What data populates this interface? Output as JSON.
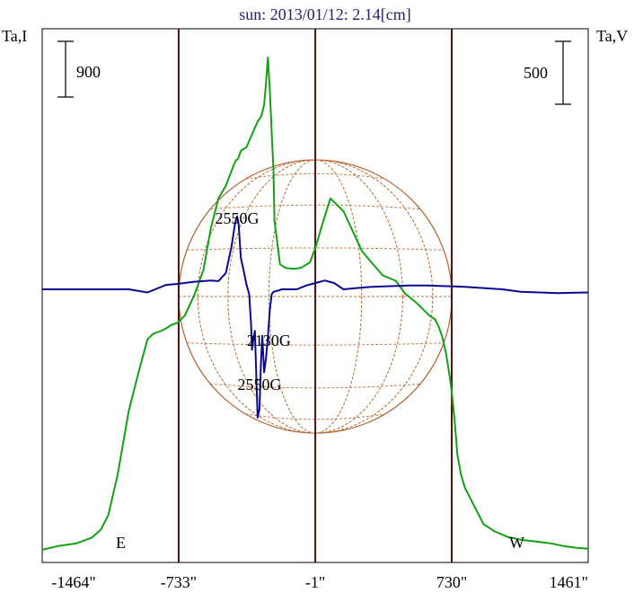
{
  "title": "sun: 2013/01/12: 2.14[cm]",
  "chart_data": {
    "type": "line",
    "title": "sun: 2013/01/12: 2.14[cm]",
    "xlim": [
      -1464,
      1461
    ],
    "x_ticks": [
      "-1464\"",
      "-733\"",
      "-1\"",
      "730\"",
      "1461\""
    ],
    "x_tick_values": [
      -1464,
      -733,
      -1,
      730,
      1461
    ],
    "left_axis_label": "Ta,I",
    "right_axis_label": "Ta,V",
    "left_scale_bar": "900",
    "right_scale_bar": "500",
    "markers": {
      "east": "E",
      "west": "W"
    },
    "limb_lines_x": [
      -733,
      -1,
      730
    ],
    "annotations": [
      {
        "text": "2550G",
        "x": -420,
        "y_series": "Ta,V",
        "y": 520
      },
      {
        "text": "2130G",
        "x": -250,
        "y_series": "Ta,V",
        "y": -450
      },
      {
        "text": "2550G",
        "x": -300,
        "y_series": "Ta,V",
        "y": -800
      }
    ],
    "series": [
      {
        "name": "Ta,I",
        "color": "#14a014",
        "y_range": [
          0,
          2750
        ],
        "x": [
          -1464,
          -1380,
          -1280,
          -1200,
          -1150,
          -1110,
          -1060,
          -1000,
          -950,
          -900,
          -870,
          -830,
          -800,
          -770,
          -740,
          -700,
          -650,
          -600,
          -560,
          -520,
          -480,
          -450,
          -435,
          -425,
          -415,
          -400,
          -370,
          -340,
          -310,
          -290,
          -275,
          -265,
          -255,
          -245,
          -232,
          -225,
          -220,
          -210,
          -190,
          -160,
          -120,
          -80,
          -30,
          0,
          40,
          80,
          100,
          150,
          200,
          250,
          300,
          360,
          430,
          480,
          540,
          580,
          610,
          640,
          660,
          680,
          700,
          720,
          730,
          745,
          760,
          780,
          800,
          840,
          900,
          960,
          1030,
          1100,
          1180,
          1260,
          1330,
          1400,
          1461
        ],
        "y": [
          40,
          60,
          75,
          105,
          150,
          230,
          450,
          800,
          1000,
          1190,
          1220,
          1235,
          1250,
          1270,
          1280,
          1320,
          1430,
          1570,
          1800,
          1960,
          2030,
          2110,
          2150,
          2170,
          2175,
          2220,
          2240,
          2310,
          2380,
          2410,
          2470,
          2590,
          2730,
          2560,
          2260,
          2120,
          1840,
          1760,
          1600,
          1580,
          1575,
          1580,
          1610,
          1690,
          1830,
          1960,
          1940,
          1890,
          1780,
          1670,
          1610,
          1540,
          1510,
          1440,
          1390,
          1350,
          1320,
          1300,
          1260,
          1200,
          1110,
          980,
          900,
          750,
          560,
          450,
          380,
          300,
          180,
          140,
          110,
          95,
          85,
          75,
          60,
          50,
          45
        ]
      },
      {
        "name": "Ta,V",
        "color": "#0a0a90",
        "y_range": [
          -1250,
          1000
        ],
        "x": [
          -1464,
          -1300,
          -1200,
          -1100,
          -1000,
          -900,
          -800,
          -730,
          -650,
          -560,
          -520,
          -480,
          -450,
          -430,
          -420,
          -412,
          -400,
          -385,
          -370,
          -355,
          -345,
          -340,
          -335,
          -325,
          -310,
          -300,
          -292,
          -285,
          -275,
          -265,
          -255,
          -245,
          -235,
          -225,
          -200,
          -180,
          -150,
          -100,
          -50,
          0,
          50,
          100,
          150,
          220,
          300,
          400,
          500,
          600,
          700,
          800,
          900,
          1000,
          1100,
          1200,
          1300,
          1461
        ],
        "y": [
          0,
          0,
          0,
          0,
          0,
          -25,
          35,
          45,
          60,
          70,
          65,
          130,
          340,
          530,
          580,
          520,
          250,
          150,
          40,
          -40,
          -280,
          -480,
          -420,
          -330,
          -1020,
          -950,
          -580,
          -370,
          -660,
          -550,
          -380,
          -170,
          -40,
          -20,
          -10,
          0,
          0,
          0,
          30,
          50,
          70,
          50,
          0,
          10,
          20,
          25,
          30,
          30,
          25,
          20,
          10,
          0,
          -20,
          -25,
          -30,
          -25
        ]
      }
    ]
  }
}
